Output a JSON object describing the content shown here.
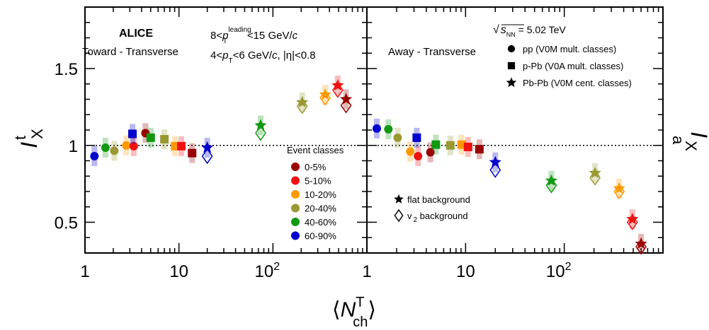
{
  "chart_data": {
    "type": "scatter",
    "experiment": "ALICE",
    "x_axis": {
      "label_base": "⟨N",
      "label_sub": "ch",
      "label_sup": "T",
      "label_close": "⟩",
      "scale": "log",
      "xlim": [
        1,
        1000
      ],
      "tick_labels": [
        "1",
        "10"
      ],
      "tick_label_pow_base": "10",
      "tick_label_pow_exp": "2"
    },
    "panels": [
      {
        "id": "toward",
        "title": "Toward - Transverse",
        "ylabel_base": "I",
        "ylabel_sub": "X",
        "ylabel_sup": "t",
        "ylim": [
          0.3,
          1.9
        ],
        "yticks": [
          "0.5",
          "1",
          "1.5"
        ],
        "reference_line": 1,
        "kinematics": [
          {
            "pre": "8<",
            "var": "p",
            "sub": "T",
            "sup": "leading",
            "post": "<15 GeV/",
            "unit": "c"
          },
          {
            "pre": "4<",
            "var": "p",
            "sub": "T",
            "sup": "",
            "post": "<6 GeV/",
            "unit": "c",
            "extra": ", |η|<0.8"
          }
        ],
        "series": [
          {
            "system": "pp",
            "marker": "circle",
            "points": [
              {
                "x": 1.26,
                "y": 0.93,
                "cls": "60-90%"
              },
              {
                "x": 1.65,
                "y": 0.985,
                "cls": "40-60%"
              },
              {
                "x": 2.05,
                "y": 0.965,
                "cls": "20-40%"
              },
              {
                "x": 2.75,
                "y": 1.0,
                "cls": "10-20%"
              },
              {
                "x": 3.3,
                "y": 0.995,
                "cls": "5-10%"
              },
              {
                "x": 4.4,
                "y": 1.08,
                "cls": "0-5%"
              }
            ]
          },
          {
            "system": "p-Pb",
            "marker": "square",
            "points": [
              {
                "x": 3.2,
                "y": 1.075,
                "cls": "60-90%"
              },
              {
                "x": 5.0,
                "y": 1.05,
                "cls": "40-60%"
              },
              {
                "x": 7.0,
                "y": 1.04,
                "cls": "20-40%"
              },
              {
                "x": 9.1,
                "y": 0.995,
                "cls": "10-20%"
              },
              {
                "x": 10.6,
                "y": 0.995,
                "cls": "5-10%"
              },
              {
                "x": 13.8,
                "y": 0.95,
                "cls": "0-5%"
              }
            ]
          },
          {
            "system": "Pb-Pb",
            "marker": "star",
            "points": [
              {
                "x": 20.0,
                "y": 0.985,
                "y2": 0.93,
                "cls": "60-90%"
              },
              {
                "x": 74.0,
                "y": 1.13,
                "y2": 1.08,
                "cls": "40-60%"
              },
              {
                "x": 205.0,
                "y": 1.28,
                "y2": 1.255,
                "cls": "20-40%"
              },
              {
                "x": 360.0,
                "y": 1.33,
                "y2": 1.31,
                "cls": "10-20%"
              },
              {
                "x": 490.0,
                "y": 1.39,
                "y2": 1.36,
                "cls": "5-10%"
              },
              {
                "x": 600.0,
                "y": 1.3,
                "y2": 1.26,
                "cls": "0-5%"
              }
            ]
          }
        ]
      },
      {
        "id": "away",
        "title": "Away - Transverse",
        "ylabel_base": "I",
        "ylabel_sub": "X",
        "ylabel_sup": "a",
        "ylim": [
          0.3,
          1.9
        ],
        "reference_line": 1,
        "series": [
          {
            "system": "pp",
            "marker": "circle",
            "points": [
              {
                "x": 1.26,
                "y": 1.11,
                "cls": "60-90%"
              },
              {
                "x": 1.65,
                "y": 1.105,
                "cls": "40-60%"
              },
              {
                "x": 2.05,
                "y": 1.05,
                "cls": "20-40%"
              },
              {
                "x": 2.75,
                "y": 0.96,
                "cls": "10-20%"
              },
              {
                "x": 3.3,
                "y": 0.93,
                "cls": "5-10%"
              },
              {
                "x": 4.4,
                "y": 0.955,
                "cls": "0-5%"
              }
            ]
          },
          {
            "system": "p-Pb",
            "marker": "square",
            "points": [
              {
                "x": 3.2,
                "y": 1.05,
                "cls": "60-90%"
              },
              {
                "x": 5.0,
                "y": 1.005,
                "cls": "40-60%"
              },
              {
                "x": 7.0,
                "y": 1.0,
                "cls": "20-40%"
              },
              {
                "x": 9.1,
                "y": 1.005,
                "cls": "10-20%"
              },
              {
                "x": 10.6,
                "y": 0.99,
                "cls": "5-10%"
              },
              {
                "x": 13.8,
                "y": 0.975,
                "cls": "0-5%"
              }
            ]
          },
          {
            "system": "Pb-Pb",
            "marker": "star",
            "points": [
              {
                "x": 20.0,
                "y": 0.89,
                "y2": 0.84,
                "cls": "60-90%"
              },
              {
                "x": 74.0,
                "y": 0.77,
                "y2": 0.74,
                "cls": "40-60%"
              },
              {
                "x": 205.0,
                "y": 0.82,
                "y2": 0.79,
                "cls": "20-40%"
              },
              {
                "x": 360.0,
                "y": 0.72,
                "y2": 0.7,
                "cls": "10-20%"
              },
              {
                "x": 490.0,
                "y": 0.52,
                "y2": 0.5,
                "cls": "5-10%"
              },
              {
                "x": 600.0,
                "y": 0.36,
                "y2": 0.34,
                "cls": "0-5%"
              }
            ]
          }
        ]
      }
    ],
    "energy": {
      "prefix": "√",
      "var": "s",
      "sub": "NN",
      "value": " = 5.02 TeV"
    },
    "systems_legend": [
      {
        "marker": "circle",
        "label": "pp (V0M mult. classes)"
      },
      {
        "marker": "square",
        "label": "p-Pb (V0A mult. classes)"
      },
      {
        "marker": "star",
        "label": "Pb-Pb (V0M cent. classes)"
      }
    ],
    "classes_legend": {
      "title": "Event classes",
      "entries": [
        {
          "label": "0-5%",
          "color": "#990000"
        },
        {
          "label": "5-10%",
          "color": "#ee1111"
        },
        {
          "label": "10-20%",
          "color": "#ff9900"
        },
        {
          "label": "20-40%",
          "color": "#999933"
        },
        {
          "label": "40-60%",
          "color": "#119911"
        },
        {
          "label": "60-90%",
          "color": "#0000cc"
        }
      ]
    },
    "background_legend": [
      {
        "marker": "star",
        "label": "flat background"
      },
      {
        "marker": "open-diamond",
        "label": "v",
        "sub": "2",
        "suffix": " background"
      }
    ]
  }
}
